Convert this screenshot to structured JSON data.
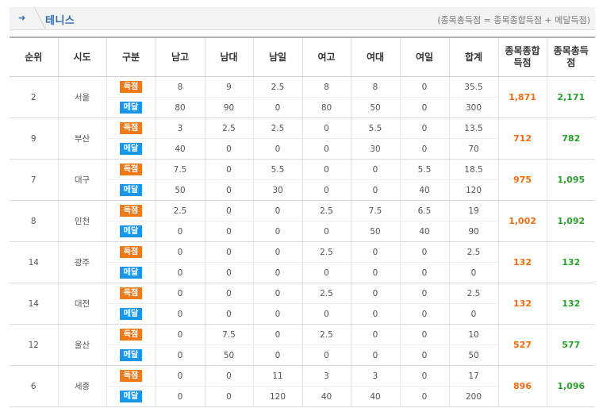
{
  "header": {
    "title": "테니스",
    "formula": "(종목총득점 = 종목종합득점 + 메달득점)"
  },
  "columns": [
    "순위",
    "시도",
    "구분",
    "남고",
    "남대",
    "남일",
    "여고",
    "여대",
    "여일",
    "합계",
    "종목종합\n득점",
    "종목총득\n점"
  ],
  "labels": {
    "score": "득점",
    "medal": "메달"
  },
  "rows": [
    {
      "rank": "2",
      "city": "서울",
      "score": [
        "8",
        "9",
        "2.5",
        "8",
        "8",
        "0",
        "35.5"
      ],
      "medal": [
        "80",
        "90",
        "0",
        "80",
        "50",
        "0",
        "300"
      ],
      "total_event": "1,871",
      "total_all": "2,171"
    },
    {
      "rank": "9",
      "city": "부산",
      "score": [
        "3",
        "2.5",
        "2.5",
        "0",
        "5.5",
        "0",
        "13.5"
      ],
      "medal": [
        "40",
        "0",
        "0",
        "0",
        "30",
        "0",
        "70"
      ],
      "total_event": "712",
      "total_all": "782"
    },
    {
      "rank": "7",
      "city": "대구",
      "score": [
        "7.5",
        "0",
        "5.5",
        "0",
        "0",
        "5.5",
        "18.5"
      ],
      "medal": [
        "50",
        "0",
        "30",
        "0",
        "0",
        "40",
        "120"
      ],
      "total_event": "975",
      "total_all": "1,095"
    },
    {
      "rank": "8",
      "city": "인천",
      "score": [
        "2.5",
        "0",
        "0",
        "2.5",
        "7.5",
        "6.5",
        "19"
      ],
      "medal": [
        "0",
        "0",
        "0",
        "0",
        "50",
        "40",
        "90"
      ],
      "total_event": "1,002",
      "total_all": "1,092"
    },
    {
      "rank": "14",
      "city": "광주",
      "score": [
        "0",
        "0",
        "0",
        "2.5",
        "0",
        "0",
        "2.5"
      ],
      "medal": [
        "0",
        "0",
        "0",
        "0",
        "0",
        "0",
        "0"
      ],
      "total_event": "132",
      "total_all": "132"
    },
    {
      "rank": "14",
      "city": "대전",
      "score": [
        "0",
        "0",
        "0",
        "2.5",
        "0",
        "0",
        "2.5"
      ],
      "medal": [
        "0",
        "0",
        "0",
        "0",
        "0",
        "0",
        "0"
      ],
      "total_event": "132",
      "total_all": "132"
    },
    {
      "rank": "12",
      "city": "울산",
      "score": [
        "0",
        "7.5",
        "0",
        "2.5",
        "0",
        "0",
        "10"
      ],
      "medal": [
        "0",
        "50",
        "0",
        "0",
        "0",
        "0",
        "50"
      ],
      "total_event": "527",
      "total_all": "577"
    },
    {
      "rank": "6",
      "city": "세종",
      "score": [
        "0",
        "0",
        "11",
        "3",
        "3",
        "0",
        "17"
      ],
      "medal": [
        "0",
        "0",
        "120",
        "40",
        "40",
        "0",
        "200"
      ],
      "total_event": "896",
      "total_all": "1,096"
    }
  ],
  "colors": {
    "score_tag": "#f07a1a",
    "medal_tag": "#1a95e8",
    "total_event": "#f06a10",
    "total_all": "#2aa02a",
    "title": "#2e6bb5"
  }
}
